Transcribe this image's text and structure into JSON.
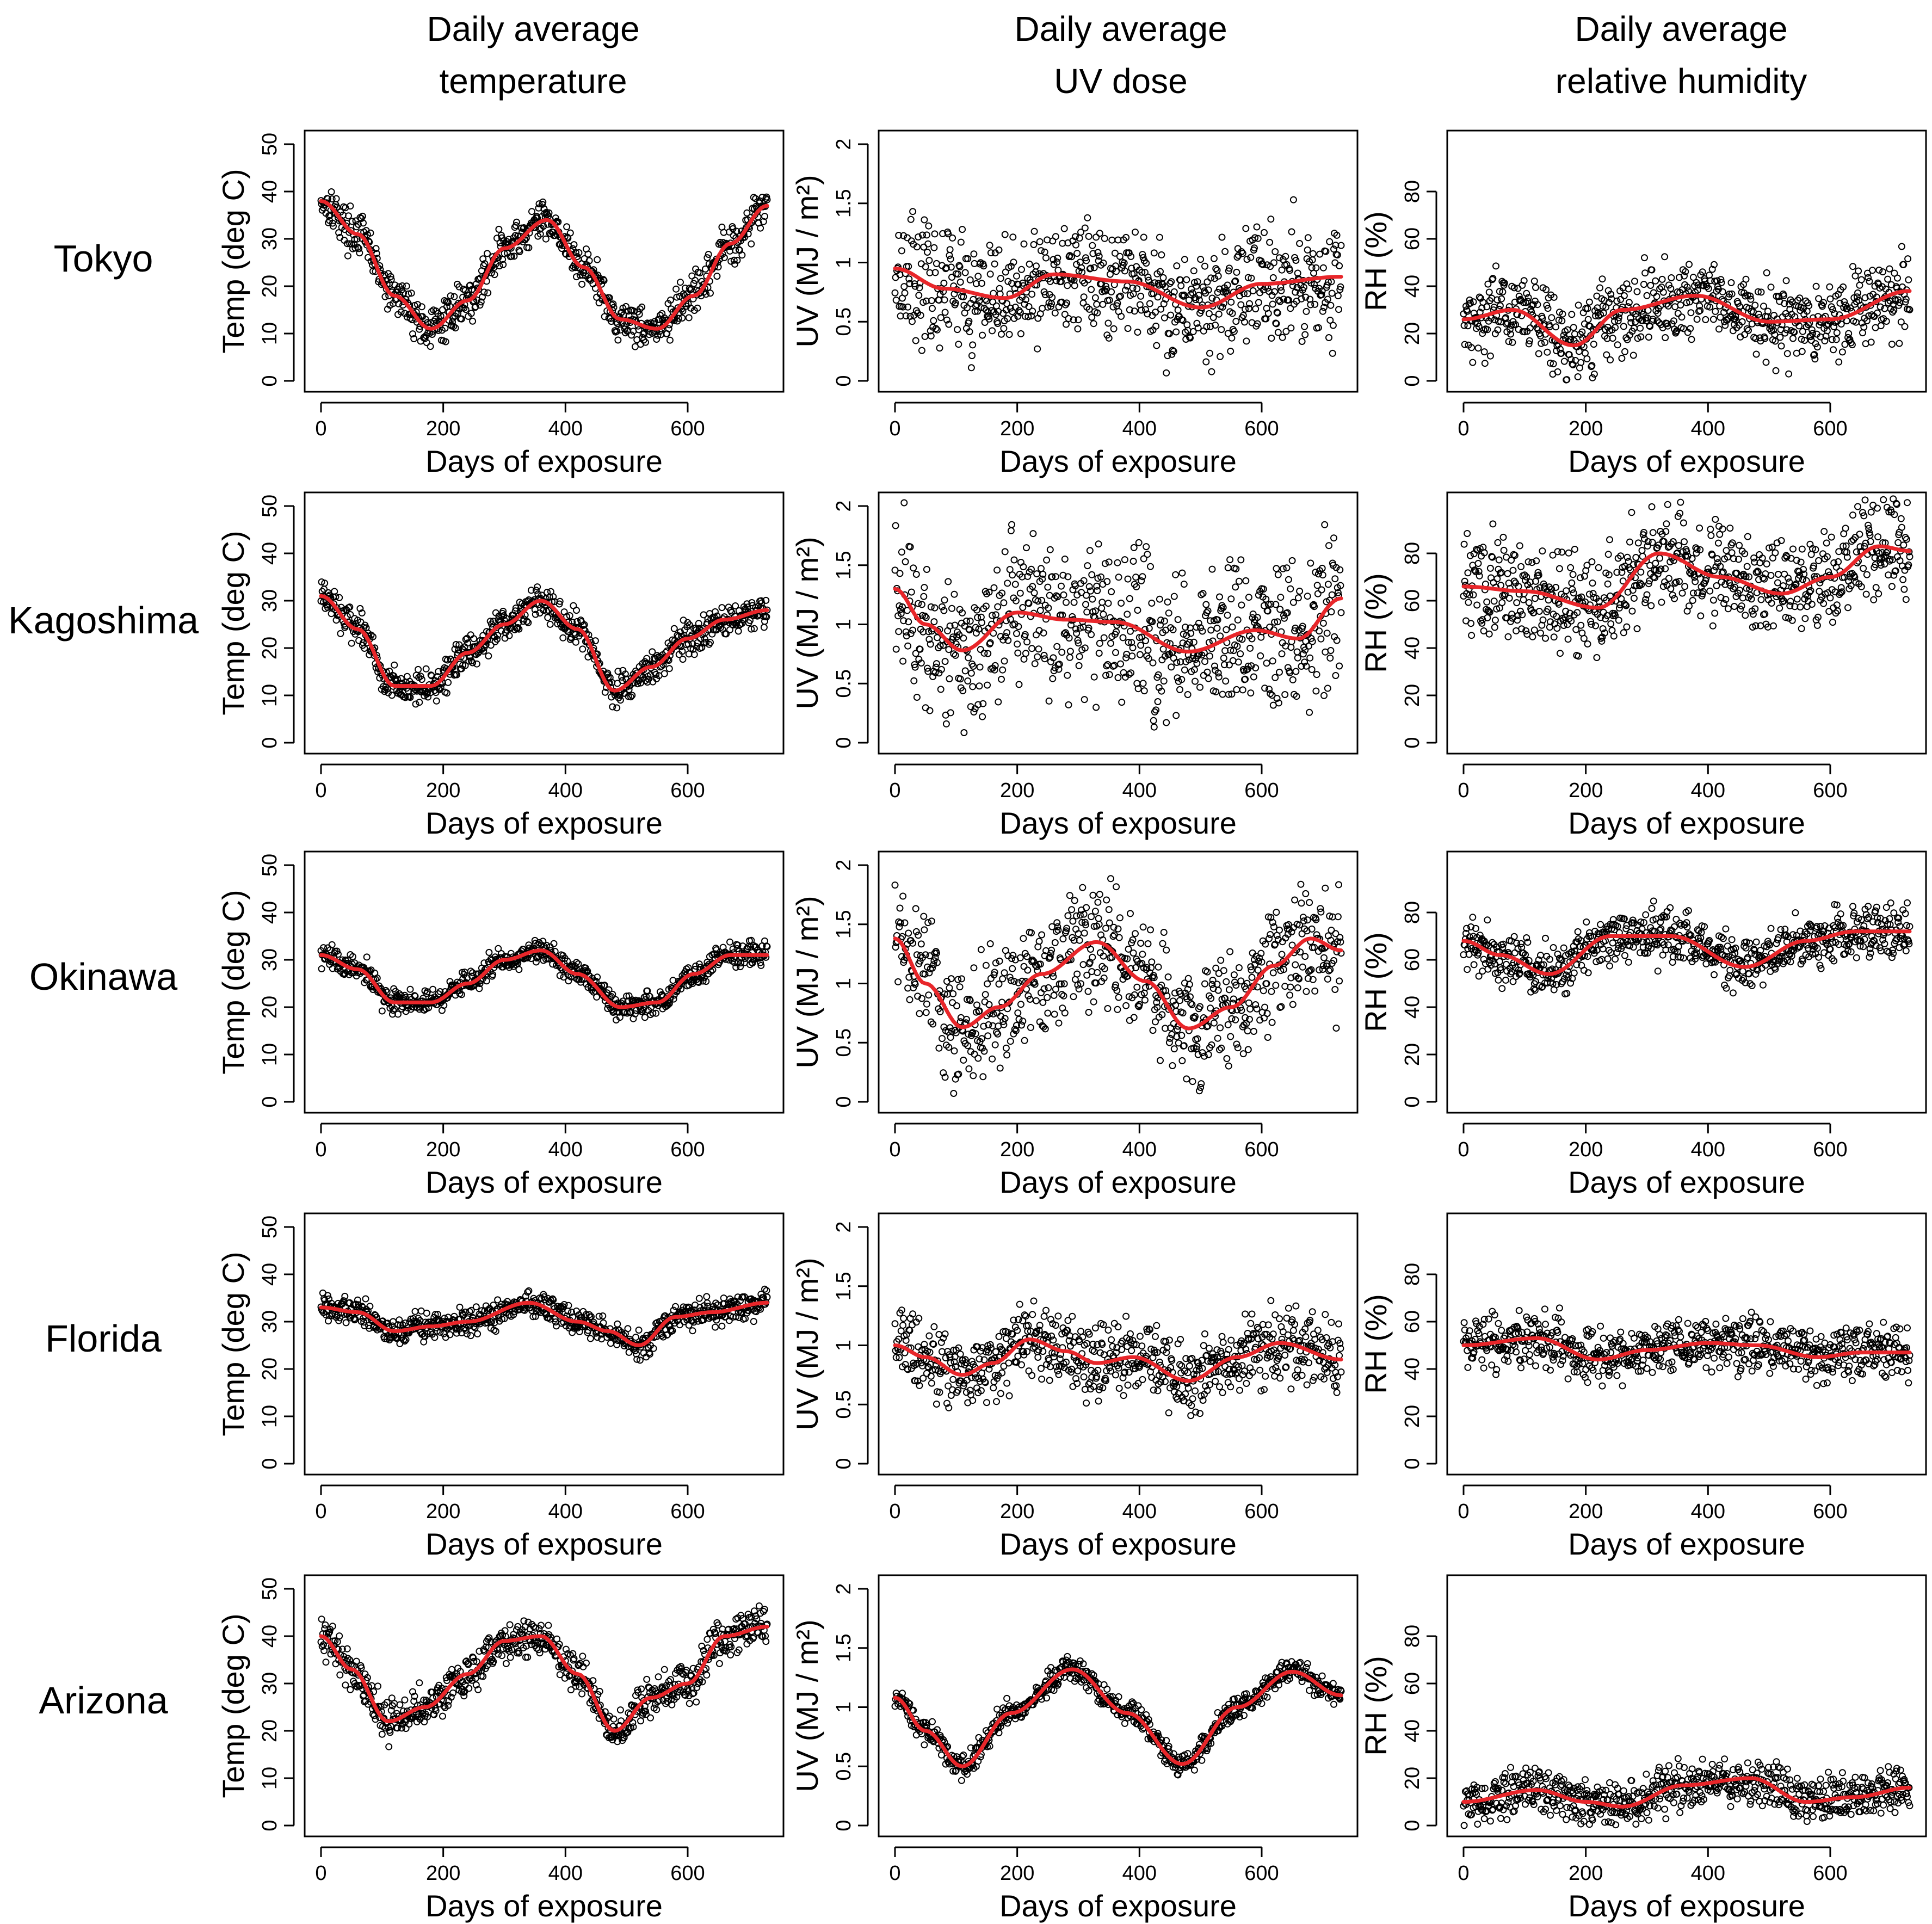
{
  "figure": {
    "columns": [
      {
        "line1": "Daily average",
        "line2": "temperature"
      },
      {
        "line1": "Daily average",
        "line2": "UV dose"
      },
      {
        "line1": "Daily average",
        "line2": "relative humidity"
      }
    ],
    "rows": [
      "Tokyo",
      "Kagoshima",
      "Okinawa",
      "Florida",
      "Arizona"
    ],
    "xlabel": "Days of exposure"
  },
  "chart_data": [
    {
      "type": "scatter",
      "panel": "Tokyo-temperature",
      "location": "Tokyo",
      "variable": "temperature",
      "title": "Daily average temperature",
      "xlabel": "Days of exposure",
      "ylabel": "Temp (deg C)",
      "xlim": [
        0,
        730
      ],
      "ylim": [
        0,
        50
      ],
      "xticks": [
        0,
        200,
        400,
        600
      ],
      "yticks": [
        0,
        10,
        20,
        30,
        40,
        50
      ],
      "trend_knots": {
        "x": [
          0,
          60,
          120,
          180,
          240,
          300,
          370,
          430,
          490,
          550,
          610,
          670,
          730
        ],
        "y": [
          38,
          31,
          18,
          11,
          17,
          28,
          34,
          24,
          13,
          11,
          18,
          29,
          37
        ]
      },
      "noise": 3
    },
    {
      "type": "scatter",
      "panel": "Tokyo-uv",
      "location": "Tokyo",
      "variable": "uv",
      "title": "Daily average UV dose",
      "xlabel": "Days of exposure",
      "ylabel": "UV (MJ / m²)",
      "xlim": [
        0,
        730
      ],
      "ylim": [
        0,
        2
      ],
      "xticks": [
        0,
        200,
        400,
        600
      ],
      "yticks": [
        0,
        0.5,
        1,
        1.5,
        2
      ],
      "trend_knots": {
        "x": [
          0,
          80,
          180,
          260,
          380,
          500,
          600,
          730
        ],
        "y": [
          0.95,
          0.78,
          0.7,
          0.9,
          0.84,
          0.62,
          0.82,
          0.88
        ]
      },
      "noise": 0.35
    },
    {
      "type": "scatter",
      "panel": "Tokyo-rh",
      "location": "Tokyo",
      "variable": "rh",
      "title": "Daily average relative humidity",
      "xlabel": "Days of exposure",
      "ylabel": "RH (%)",
      "xlim": [
        0,
        730
      ],
      "ylim": [
        0,
        100
      ],
      "xticks": [
        0,
        200,
        400,
        600
      ],
      "yticks": [
        0,
        20,
        40,
        60,
        80
      ],
      "trend_knots": {
        "x": [
          0,
          80,
          180,
          260,
          380,
          500,
          600,
          730
        ],
        "y": [
          26,
          30,
          15,
          30,
          36,
          25,
          26,
          38
        ]
      },
      "noise": 12
    },
    {
      "type": "scatter",
      "panel": "Kagoshima-temperature",
      "location": "Kagoshima",
      "variable": "temperature",
      "title": "Daily average temperature",
      "xlabel": "Days of exposure",
      "ylabel": "Temp (deg C)",
      "xlim": [
        0,
        730
      ],
      "ylim": [
        0,
        50
      ],
      "xticks": [
        0,
        200,
        400,
        600
      ],
      "yticks": [
        0,
        10,
        20,
        30,
        40,
        50
      ],
      "trend_knots": {
        "x": [
          0,
          60,
          120,
          180,
          240,
          300,
          360,
          420,
          480,
          540,
          600,
          660,
          730
        ],
        "y": [
          31,
          24,
          12,
          12,
          19,
          25,
          30,
          24,
          11,
          16,
          22,
          26,
          28
        ]
      },
      "noise": 2.5
    },
    {
      "type": "scatter",
      "panel": "Kagoshima-uv",
      "location": "Kagoshima",
      "variable": "uv",
      "title": "Daily average UV dose",
      "xlabel": "Days of exposure",
      "ylabel": "UV (MJ / m²)",
      "xlim": [
        0,
        730
      ],
      "ylim": [
        0,
        2
      ],
      "xticks": [
        0,
        200,
        400,
        600
      ],
      "yticks": [
        0,
        0.5,
        1,
        1.5,
        2
      ],
      "trend_knots": {
        "x": [
          0,
          50,
          110,
          200,
          280,
          360,
          480,
          590,
          660,
          730
        ],
        "y": [
          1.3,
          1.0,
          0.78,
          1.1,
          1.04,
          1.02,
          0.77,
          0.95,
          0.88,
          1.22
        ]
      },
      "noise": 0.45
    },
    {
      "type": "scatter",
      "panel": "Kagoshima-rh",
      "location": "Kagoshima",
      "variable": "rh",
      "title": "Daily average relative humidity",
      "xlabel": "Days of exposure",
      "ylabel": "RH (%)",
      "xlim": [
        0,
        730
      ],
      "ylim": [
        0,
        100
      ],
      "xticks": [
        0,
        200,
        400,
        600
      ],
      "yticks": [
        0,
        20,
        40,
        60,
        80
      ],
      "trend_knots": {
        "x": [
          0,
          100,
          220,
          320,
          420,
          520,
          600,
          680,
          730
        ],
        "y": [
          66,
          64,
          57,
          80,
          70,
          63,
          70,
          83,
          81
        ]
      },
      "noise": 15
    },
    {
      "type": "scatter",
      "panel": "Okinawa-temperature",
      "location": "Okinawa",
      "variable": "temperature",
      "title": "Daily average temperature",
      "xlabel": "Days of exposure",
      "ylabel": "Temp (deg C)",
      "xlim": [
        0,
        730
      ],
      "ylim": [
        0,
        50
      ],
      "xticks": [
        0,
        200,
        400,
        600
      ],
      "yticks": [
        0,
        10,
        20,
        30,
        40,
        50
      ],
      "trend_knots": {
        "x": [
          0,
          60,
          120,
          180,
          240,
          300,
          360,
          420,
          490,
          550,
          610,
          670,
          730
        ],
        "y": [
          31,
          28,
          21,
          21,
          25,
          30,
          32,
          27,
          20,
          21,
          27,
          31,
          31
        ]
      },
      "noise": 1.8
    },
    {
      "type": "scatter",
      "panel": "Okinawa-uv",
      "location": "Okinawa",
      "variable": "uv",
      "title": "Daily average UV dose",
      "xlabel": "Days of exposure",
      "ylabel": "UV (MJ / m²)",
      "xlim": [
        0,
        730
      ],
      "ylim": [
        0,
        2
      ],
      "xticks": [
        0,
        200,
        400,
        600
      ],
      "yticks": [
        0,
        0.5,
        1,
        1.5,
        2
      ],
      "trend_knots": {
        "x": [
          0,
          50,
          110,
          170,
          240,
          330,
          410,
          480,
          550,
          620,
          680,
          730
        ],
        "y": [
          1.38,
          1.0,
          0.63,
          0.8,
          1.08,
          1.35,
          1.02,
          0.62,
          0.8,
          1.15,
          1.38,
          1.28
        ]
      },
      "noise": 0.35
    },
    {
      "type": "scatter",
      "panel": "Okinawa-rh",
      "location": "Okinawa",
      "variable": "rh",
      "title": "Daily average relative humidity",
      "xlabel": "Days of exposure",
      "ylabel": "RH (%)",
      "xlim": [
        0,
        730
      ],
      "ylim": [
        0,
        100
      ],
      "xticks": [
        0,
        200,
        400,
        600
      ],
      "yticks": [
        0,
        20,
        40,
        60,
        80
      ],
      "trend_knots": {
        "x": [
          0,
          60,
          140,
          240,
          340,
          460,
          560,
          640,
          730
        ],
        "y": [
          68,
          62,
          54,
          70,
          70,
          57,
          68,
          72,
          72
        ]
      },
      "noise": 8
    },
    {
      "type": "scatter",
      "panel": "Florida-temperature",
      "location": "Florida",
      "variable": "temperature",
      "title": "Daily average temperature",
      "xlabel": "Days of exposure",
      "ylabel": "Temp (deg C)",
      "xlim": [
        0,
        730
      ],
      "ylim": [
        0,
        50
      ],
      "xticks": [
        0,
        200,
        400,
        600
      ],
      "yticks": [
        0,
        10,
        20,
        30,
        40,
        50
      ],
      "trend_knots": {
        "x": [
          0,
          60,
          120,
          180,
          240,
          340,
          420,
          470,
          520,
          580,
          640,
          730
        ],
        "y": [
          33,
          32,
          28,
          29,
          30,
          34,
          30,
          28,
          25,
          31,
          32,
          34
        ]
      },
      "noise": 2
    },
    {
      "type": "scatter",
      "panel": "Florida-uv",
      "location": "Florida",
      "variable": "uv",
      "title": "Daily average UV dose",
      "xlabel": "Days of exposure",
      "ylabel": "UV (MJ / m²)",
      "xlim": [
        0,
        730
      ],
      "ylim": [
        0,
        2
      ],
      "xticks": [
        0,
        200,
        400,
        600
      ],
      "yticks": [
        0,
        0.5,
        1,
        1.5,
        2
      ],
      "trend_knots": {
        "x": [
          0,
          50,
          110,
          160,
          220,
          280,
          330,
          390,
          480,
          560,
          630,
          730
        ],
        "y": [
          1.0,
          0.9,
          0.75,
          0.85,
          1.05,
          0.95,
          0.85,
          0.9,
          0.7,
          0.9,
          1.02,
          0.88
        ]
      },
      "noise": 0.22
    },
    {
      "type": "scatter",
      "panel": "Florida-rh",
      "location": "Florida",
      "variable": "rh",
      "title": "Daily average relative humidity",
      "xlabel": "Days of exposure",
      "ylabel": "RH (%)",
      "xlim": [
        0,
        730
      ],
      "ylim": [
        0,
        100
      ],
      "xticks": [
        0,
        200,
        400,
        600
      ],
      "yticks": [
        0,
        20,
        40,
        60,
        80
      ],
      "trend_knots": {
        "x": [
          0,
          120,
          220,
          300,
          400,
          480,
          580,
          650,
          730
        ],
        "y": [
          50,
          53,
          44,
          48,
          51,
          50,
          45,
          47,
          47
        ]
      },
      "noise": 8
    },
    {
      "type": "scatter",
      "panel": "Arizona-temperature",
      "location": "Arizona",
      "variable": "temperature",
      "title": "Daily average temperature",
      "xlabel": "Days of exposure",
      "ylabel": "Temp (deg C)",
      "xlim": [
        0,
        730
      ],
      "ylim": [
        0,
        50
      ],
      "xticks": [
        0,
        200,
        400,
        600
      ],
      "yticks": [
        0,
        10,
        20,
        30,
        40,
        50
      ],
      "trend_knots": {
        "x": [
          0,
          50,
          110,
          170,
          240,
          300,
          360,
          420,
          480,
          540,
          600,
          660,
          730
        ],
        "y": [
          40,
          33,
          22,
          25,
          32,
          39,
          40,
          32,
          20,
          27,
          30,
          40,
          42
        ]
      },
      "noise": 3
    },
    {
      "type": "scatter",
      "panel": "Arizona-uv",
      "location": "Arizona",
      "variable": "uv",
      "title": "Daily average UV dose",
      "xlabel": "Days of exposure",
      "ylabel": "UV (MJ / m²)",
      "xlim": [
        0,
        730
      ],
      "ylim": [
        0,
        2
      ],
      "xticks": [
        0,
        200,
        400,
        600
      ],
      "yticks": [
        0,
        0.5,
        1,
        1.5,
        2
      ],
      "trend_knots": {
        "x": [
          0,
          50,
          110,
          190,
          290,
          380,
          470,
          560,
          650,
          730
        ],
        "y": [
          1.08,
          0.8,
          0.5,
          0.95,
          1.32,
          0.95,
          0.52,
          1.0,
          1.3,
          1.1
        ]
      },
      "noise": 0.07
    },
    {
      "type": "scatter",
      "panel": "Arizona-rh",
      "location": "Arizona",
      "variable": "rh",
      "title": "Daily average relative humidity",
      "xlabel": "Days of exposure",
      "ylabel": "RH (%)",
      "xlim": [
        0,
        730
      ],
      "ylim": [
        0,
        100
      ],
      "xticks": [
        0,
        200,
        400,
        600
      ],
      "yticks": [
        0,
        20,
        40,
        60,
        80
      ],
      "trend_knots": {
        "x": [
          0,
          120,
          200,
          260,
          360,
          470,
          560,
          640,
          730
        ],
        "y": [
          10,
          15,
          10,
          8,
          17,
          20,
          10,
          12,
          16
        ]
      },
      "noise": 7
    }
  ],
  "colors": {
    "points": "#000000",
    "trend": "#e8262a",
    "axes": "#000000",
    "background": "#ffffff"
  }
}
